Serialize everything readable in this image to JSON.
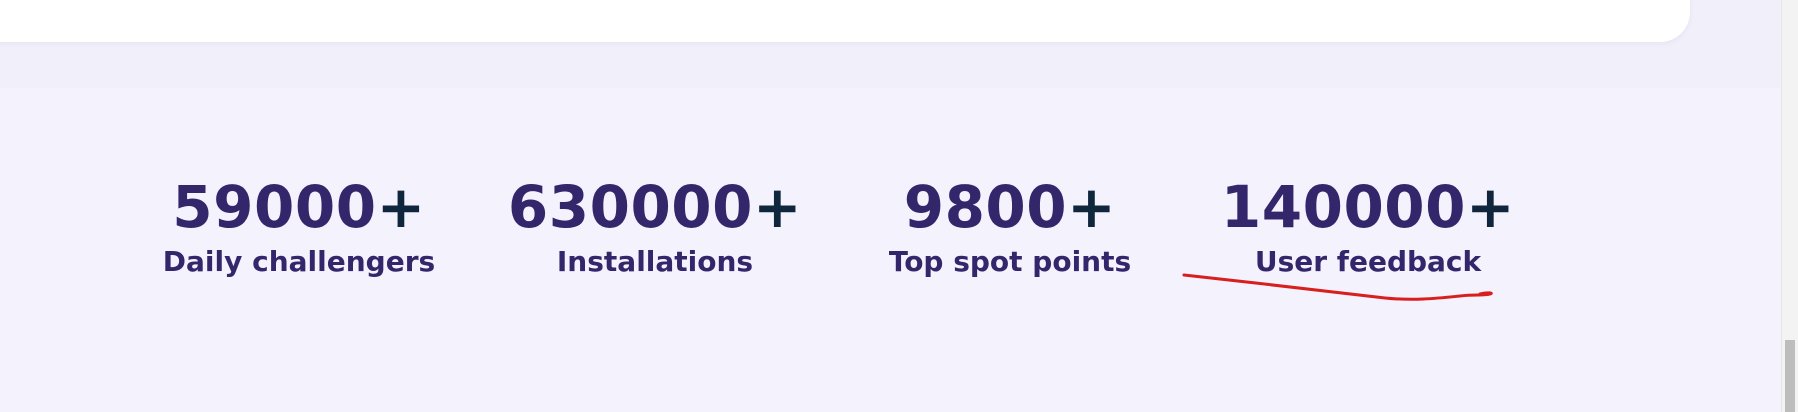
{
  "stats": [
    {
      "number": "59000",
      "suffix": "+",
      "label": "Daily challengers"
    },
    {
      "number": "630000",
      "suffix": "+",
      "label": "Installations"
    },
    {
      "number": "9800",
      "suffix": "+",
      "label": "Top spot points"
    },
    {
      "number": "140000",
      "suffix": "+",
      "label": "User feedback"
    }
  ],
  "colors": {
    "page_background": "#f4f2fc",
    "card_background": "#ffffff",
    "stat_number": "#33266b",
    "plus_sign": "#10263d",
    "annotation": "#d81e1e"
  }
}
